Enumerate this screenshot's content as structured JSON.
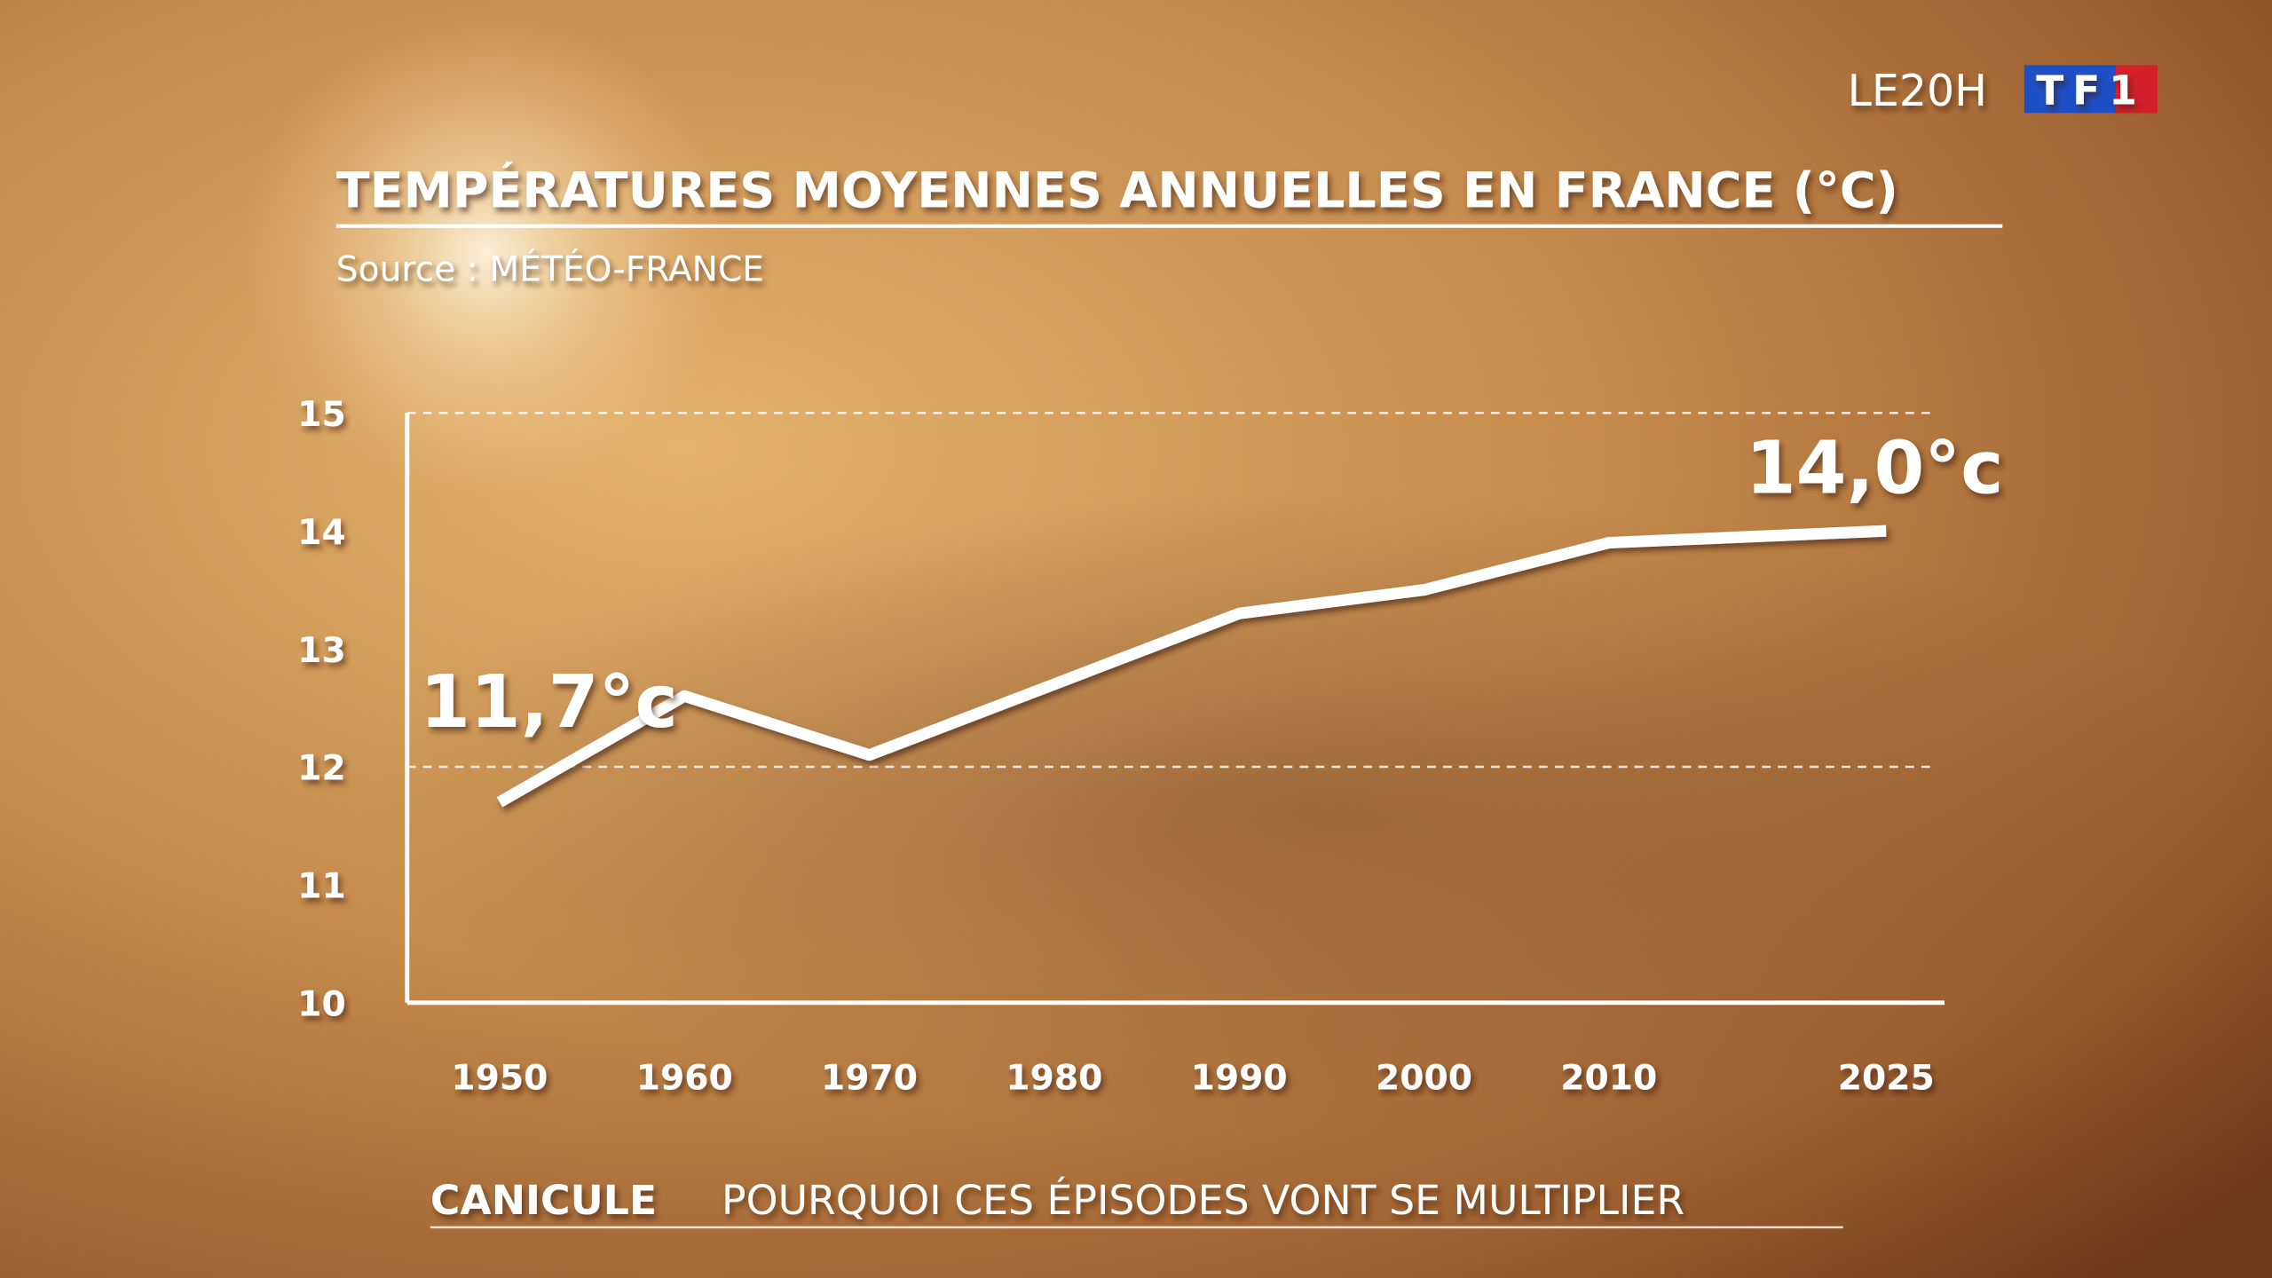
{
  "logo": {
    "show": "LE20H",
    "channel": "TF1"
  },
  "chart_data": {
    "type": "line",
    "title": "TEMPÉRATURES MOYENNES ANNUELLES EN FRANCE (°C)",
    "subtitle": "Source : MÉTÉO-FRANCE",
    "x": [
      1950,
      1960,
      1970,
      1980,
      1990,
      2000,
      2010,
      2025
    ],
    "xticks": [
      1950,
      1960,
      1970,
      1980,
      1990,
      2000,
      2010,
      2025
    ],
    "xlim": [
      1945,
      2028
    ],
    "series": [
      {
        "color": "#ffffff",
        "values": [
          11.7,
          12.6,
          12.1,
          12.7,
          13.3,
          13.5,
          13.9,
          14.0
        ],
        "value_labels": [
          "11,7°c",
          null,
          null,
          null,
          null,
          null,
          null,
          "14,0°c"
        ]
      }
    ],
    "ylim": [
      10,
      15
    ],
    "yticks": [
      10,
      11,
      12,
      13,
      14,
      15
    ],
    "dashed_grid": [
      12,
      15
    ]
  },
  "banner": {
    "topic": "CANICULE",
    "headline": "POURQUOI CES ÉPISODES VONT SE MULTIPLIER"
  }
}
